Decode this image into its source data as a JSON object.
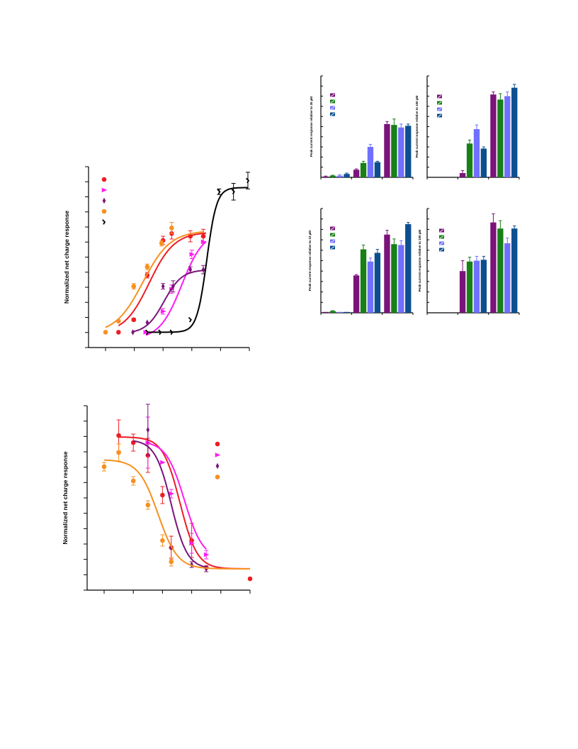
{
  "colors": {
    "red": "#ee1c25",
    "magenta": "#ff1cf0",
    "purple": "#7a137a",
    "orange": "#f7901e",
    "black": "#000000",
    "green": "#178017",
    "lightblue": "#6f70ff",
    "navy": "#0b4f90"
  },
  "chart_data": [
    {
      "id": "A",
      "type": "scatter",
      "ylabel": "Normalized net charge response",
      "xlim": [
        0,
        5
      ],
      "ylim": [
        0,
        1.3
      ],
      "y_tick_count": 13,
      "x_tick_count": 6,
      "legend_position": "top-left",
      "series": [
        {
          "color_key": "red",
          "marker": "circle",
          "fit": {
            "top": 0.83,
            "bottom": 0.1,
            "x50": 1.52,
            "k": 2.3,
            "xmin": 0.45,
            "xmax": 3.5
          },
          "points": [
            {
              "x": 0.45,
              "y": 0.11,
              "e": 0
            },
            {
              "x": 0.98,
              "y": 0.2,
              "e": 0.01
            },
            {
              "x": 1.45,
              "y": 0.52,
              "e": 0.02
            },
            {
              "x": 2.0,
              "y": 0.77,
              "e": 0.03
            },
            {
              "x": 2.3,
              "y": 0.82,
              "e": 0.04
            },
            {
              "x": 2.95,
              "y": 0.8,
              "e": 0.04
            },
            {
              "x": 3.4,
              "y": 0.8,
              "e": 0.05
            }
          ]
        },
        {
          "color_key": "magenta",
          "marker": "triangle",
          "fit": {
            "top": 0.84,
            "bottom": 0.06,
            "x50": 2.65,
            "k": 2.6,
            "xmin": 1.4,
            "xmax": 3.5
          },
          "points": [
            {
              "x": 1.4,
              "y": 0.11,
              "e": 0
            },
            {
              "x": 2.0,
              "y": 0.26,
              "e": 0.02
            },
            {
              "x": 2.3,
              "y": 0.42,
              "e": 0.03
            },
            {
              "x": 3.0,
              "y": 0.67,
              "e": 0.03
            },
            {
              "x": 3.4,
              "y": 0.76,
              "e": 0
            }
          ]
        },
        {
          "color_key": "purple",
          "marker": "diamond",
          "fit": {
            "top": 0.56,
            "bottom": 0.1,
            "x50": 2.03,
            "k": 3.2,
            "xmin": 0.95,
            "xmax": 3.45
          },
          "points": [
            {
              "x": 0.95,
              "y": 0.11,
              "e": 0
            },
            {
              "x": 1.45,
              "y": 0.18,
              "e": 0
            },
            {
              "x": 2.0,
              "y": 0.44,
              "e": 0.02
            },
            {
              "x": 2.35,
              "y": 0.44,
              "e": 0.04
            },
            {
              "x": 2.95,
              "y": 0.56,
              "e": 0.02
            },
            {
              "x": 3.4,
              "y": 0.56,
              "e": 0.03
            }
          ]
        },
        {
          "color_key": "orange",
          "marker": "circle",
          "fit": {
            "top": 0.84,
            "bottom": 0.1,
            "x50": 1.3,
            "k": 2.1,
            "xmin": 0,
            "xmax": 3.4
          },
          "points": [
            {
              "x": 0,
              "y": 0.11,
              "e": 0
            },
            {
              "x": 0.45,
              "y": 0.19,
              "e": 0
            },
            {
              "x": 0.98,
              "y": 0.44,
              "e": 0.02
            },
            {
              "x": 1.45,
              "y": 0.58,
              "e": 0.02
            },
            {
              "x": 1.95,
              "y": 0.75,
              "e": 0.02
            },
            {
              "x": 2.3,
              "y": 0.86,
              "e": 0.04
            }
          ]
        },
        {
          "color_key": "black",
          "marker": "tick",
          "fit": {
            "top": 1.15,
            "bottom": 0.11,
            "x50": 3.52,
            "k": 5.8,
            "xmin": 1.45,
            "xmax": 4.95
          },
          "points": [
            {
              "x": 1.45,
              "y": 0.11,
              "e": 0
            },
            {
              "x": 1.9,
              "y": 0.11,
              "e": 0
            },
            {
              "x": 2.3,
              "y": 0.11,
              "e": 0
            },
            {
              "x": 2.95,
              "y": 0.2,
              "e": 0
            },
            {
              "x": 3.95,
              "y": 1.12,
              "e": 0.02
            },
            {
              "x": 4.45,
              "y": 1.12,
              "e": 0.06
            },
            {
              "x": 4.95,
              "y": 1.2,
              "e": 0.06
            }
          ]
        }
      ]
    },
    {
      "id": "B",
      "type": "scatter",
      "ylabel": "Normalized net charge response",
      "xlim": [
        0,
        5
      ],
      "ylim": [
        0,
        1.3
      ],
      "y_tick_count": 13,
      "x_tick_count": 6,
      "legend_position": "top-right",
      "series": [
        {
          "color_key": "red",
          "marker": "circle",
          "fit": {
            "top": 1.08,
            "bottom": 0.15,
            "x50": 2.6,
            "k": -3.4,
            "xmin": 0.5,
            "xmax": 5.0
          },
          "points": [
            {
              "x": 0.5,
              "y": 1.09,
              "e": 0.11
            },
            {
              "x": 1.0,
              "y": 1.04,
              "e": 0.06
            },
            {
              "x": 1.5,
              "y": 0.95,
              "e": 0.12
            },
            {
              "x": 2.0,
              "y": 0.67,
              "e": 0.06
            },
            {
              "x": 2.3,
              "y": 0.3,
              "e": 0.08
            },
            {
              "x": 3.0,
              "y": 0.35,
              "e": 0.12
            },
            {
              "x": 3.5,
              "y": 0.16,
              "e": 0
            },
            {
              "x": 5.0,
              "y": 0.08,
              "e": 0
            }
          ]
        },
        {
          "color_key": "magenta",
          "marker": "triangle",
          "fit": {
            "top": 1.05,
            "bottom": 0.22,
            "x50": 2.75,
            "k": -3.2,
            "xmin": 1.5,
            "xmax": 3.5
          },
          "points": [
            {
              "x": 1.5,
              "y": 1.04,
              "e": 0.18
            },
            {
              "x": 2.0,
              "y": 0.9,
              "e": 0
            },
            {
              "x": 2.3,
              "y": 0.68,
              "e": 0.03
            },
            {
              "x": 3.0,
              "y": 0.33,
              "e": 0.07
            },
            {
              "x": 3.5,
              "y": 0.25,
              "e": 0.03
            }
          ]
        },
        {
          "color_key": "purple",
          "marker": "diamond",
          "fit": {
            "top": 1.06,
            "bottom": 0.15,
            "x50": 2.3,
            "k": -3.6,
            "xmin": 1.0,
            "xmax": 3.5
          },
          "points": [
            {
              "x": 1.5,
              "y": 1.13,
              "e": 0.18
            },
            {
              "x": 2.3,
              "y": 0.3,
              "e": 0
            },
            {
              "x": 3.0,
              "y": 0.18,
              "e": 0.02
            },
            {
              "x": 3.5,
              "y": 0.15,
              "e": 0.02
            }
          ]
        },
        {
          "color_key": "orange",
          "marker": "circle",
          "fit": {
            "top": 0.92,
            "bottom": 0.15,
            "x50": 1.85,
            "k": -3.0,
            "xmin": 0,
            "xmax": 5.0
          },
          "points": [
            {
              "x": 0,
              "y": 0.87,
              "e": 0.03
            },
            {
              "x": 0.5,
              "y": 0.97,
              "e": 0.06
            },
            {
              "x": 1.0,
              "y": 0.77,
              "e": 0.03
            },
            {
              "x": 1.5,
              "y": 0.6,
              "e": 0.03
            },
            {
              "x": 2.0,
              "y": 0.35,
              "e": 0.04
            },
            {
              "x": 2.3,
              "y": 0.2,
              "e": 0.03
            }
          ]
        }
      ]
    },
    {
      "id": "C",
      "type": "bar",
      "ylabel": "Peak current response relative to 30 µM",
      "ylim": [
        0,
        1.2
      ],
      "y_tick_count": 11,
      "x_tick_count": 4,
      "series_keys": [
        "purple",
        "green",
        "lightblue",
        "navy"
      ],
      "groups": [
        {
          "values": [
            0.01,
            0.02,
            0.02,
            0.04
          ],
          "errors": [
            0.005,
            0.005,
            0.01,
            0.01
          ]
        },
        {
          "values": [
            0.09,
            0.17,
            0.36,
            0.18
          ],
          "errors": [
            0.01,
            0.02,
            0.03,
            0.01
          ]
        },
        {
          "values": [
            0.63,
            0.62,
            0.59,
            0.61
          ],
          "errors": [
            0.03,
            0.07,
            0.04,
            0.02
          ]
        }
      ]
    },
    {
      "id": "D",
      "type": "bar",
      "ylabel": "Peak current response relative to 100 µM",
      "ylim": [
        0,
        1.2
      ],
      "y_tick_count": 11,
      "x_tick_count": 4,
      "series_keys": [
        "purple",
        "green",
        "lightblue",
        "navy"
      ],
      "groups": [
        {
          "values": [
            0.0,
            0.0,
            0.0,
            0.0
          ],
          "errors": [
            0,
            0,
            0,
            0
          ]
        },
        {
          "values": [
            0.05,
            0.4,
            0.57,
            0.34
          ],
          "errors": [
            0.03,
            0.04,
            0.05,
            0.02
          ]
        },
        {
          "values": [
            0.98,
            0.92,
            0.96,
            1.06
          ],
          "errors": [
            0.03,
            0.07,
            0.05,
            0.04
          ]
        }
      ]
    },
    {
      "id": "E",
      "type": "bar",
      "ylabel": "Peak current response relative to 10 µM",
      "ylim": [
        0,
        1.2
      ],
      "y_tick_count": 11,
      "x_tick_count": 4,
      "series_keys": [
        "purple",
        "green",
        "lightblue",
        "navy"
      ],
      "groups": [
        {
          "values": [
            0.01,
            0.02,
            0.01,
            0.01
          ],
          "errors": [
            0,
            0.005,
            0,
            0
          ]
        },
        {
          "values": [
            0.43,
            0.73,
            0.59,
            0.69
          ],
          "errors": [
            0.01,
            0.05,
            0.04,
            0.04
          ]
        },
        {
          "values": [
            0.9,
            0.79,
            0.78,
            1.02
          ],
          "errors": [
            0.05,
            0.06,
            0.05,
            0.02
          ]
        }
      ]
    },
    {
      "id": "F",
      "type": "bar",
      "ylabel": "Peak current response relative to 100 µM",
      "ylim": [
        0,
        1.2
      ],
      "y_tick_count": 11,
      "x_tick_count": 4,
      "series_keys": [
        "purple",
        "green",
        "lightblue",
        "navy"
      ],
      "groups": [
        {
          "values": [
            0.0,
            0.0,
            0.0,
            0.0
          ],
          "errors": [
            0,
            0,
            0,
            0
          ]
        },
        {
          "values": [
            0.48,
            0.59,
            0.6,
            0.61
          ],
          "errors": [
            0.12,
            0.05,
            0.05,
            0.04
          ]
        },
        {
          "values": [
            1.04,
            0.97,
            0.8,
            0.97
          ],
          "errors": [
            0.1,
            0.09,
            0.06,
            0.03
          ]
        }
      ]
    }
  ]
}
